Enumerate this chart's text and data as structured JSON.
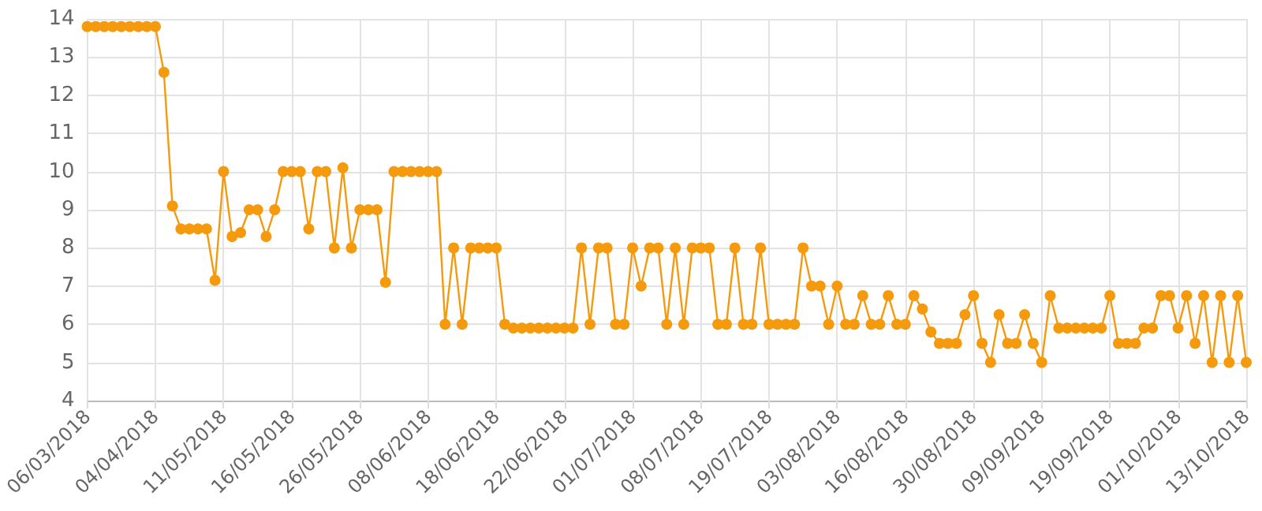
{
  "chart_data": {
    "type": "line",
    "categories": [
      "06/03/2018",
      null,
      null,
      null,
      null,
      null,
      null,
      null,
      "04/04/2018",
      null,
      null,
      null,
      null,
      null,
      null,
      null,
      "11/05/2018",
      null,
      null,
      null,
      null,
      null,
      null,
      null,
      "16/05/2018",
      null,
      null,
      null,
      null,
      null,
      null,
      null,
      "26/05/2018",
      null,
      null,
      null,
      null,
      null,
      null,
      null,
      "08/06/2018",
      null,
      null,
      null,
      null,
      null,
      null,
      null,
      "18/06/2018",
      null,
      null,
      null,
      null,
      null,
      null,
      null,
      "22/06/2018",
      null,
      null,
      null,
      null,
      null,
      null,
      null,
      "01/07/2018",
      null,
      null,
      null,
      null,
      null,
      null,
      null,
      "08/07/2018",
      null,
      null,
      null,
      null,
      null,
      null,
      null,
      "19/07/2018",
      null,
      null,
      null,
      null,
      null,
      null,
      null,
      "03/08/2018",
      null,
      null,
      null,
      null,
      null,
      null,
      null,
      "16/08/2018",
      null,
      null,
      null,
      null,
      null,
      null,
      null,
      "30/08/2018",
      null,
      null,
      null,
      null,
      null,
      null,
      null,
      "09/09/2018",
      null,
      null,
      null,
      null,
      null,
      null,
      null,
      "19/09/2018",
      null,
      null,
      null,
      null,
      null,
      null,
      null,
      "01/10/2018",
      null,
      null,
      null,
      null,
      null,
      null,
      null,
      "13/10/2018"
    ],
    "series": [
      {
        "color": "#f59a0c",
        "values": [
          13.8,
          13.8,
          13.8,
          13.8,
          13.8,
          13.8,
          13.8,
          13.8,
          13.8,
          12.6,
          9.1,
          8.5,
          8.5,
          8.5,
          8.5,
          7.15,
          10,
          8.3,
          8.4,
          9,
          9,
          8.3,
          9,
          10,
          10,
          10,
          8.5,
          10,
          10,
          8,
          10.1,
          8,
          9,
          9,
          9,
          7.1,
          10,
          10,
          10,
          10,
          10,
          10,
          6,
          8,
          6,
          8,
          8,
          8,
          8,
          6,
          5.9,
          5.9,
          5.9,
          5.9,
          5.9,
          5.9,
          5.9,
          5.9,
          8,
          6,
          8,
          8,
          6,
          6,
          8,
          7,
          8,
          8,
          6,
          8,
          6,
          8,
          8,
          8,
          6,
          6,
          8,
          6,
          6,
          8,
          6,
          6,
          6,
          6,
          8,
          7,
          7,
          6,
          7,
          6,
          6,
          6.75,
          6,
          6,
          6.75,
          6,
          6,
          6.75,
          6.4,
          5.8,
          5.5,
          5.5,
          5.5,
          6.25,
          6.75,
          5.5,
          5,
          6.25,
          5.5,
          5.5,
          6.25,
          5.5,
          5,
          6.75,
          5.9,
          5.9,
          5.9,
          5.9,
          5.9,
          5.9,
          6.75,
          5.5,
          5.5,
          5.5,
          5.9,
          5.9,
          6.75,
          6.75,
          5.9,
          6.75,
          5.5,
          6.75,
          5,
          6.75,
          5,
          6.75,
          5
        ]
      }
    ],
    "ylim": [
      4,
      14
    ],
    "yticks": [
      4,
      5,
      6,
      7,
      8,
      9,
      10,
      11,
      12,
      13,
      14
    ],
    "grid": true,
    "marker": "circle",
    "line_style": "solid"
  }
}
